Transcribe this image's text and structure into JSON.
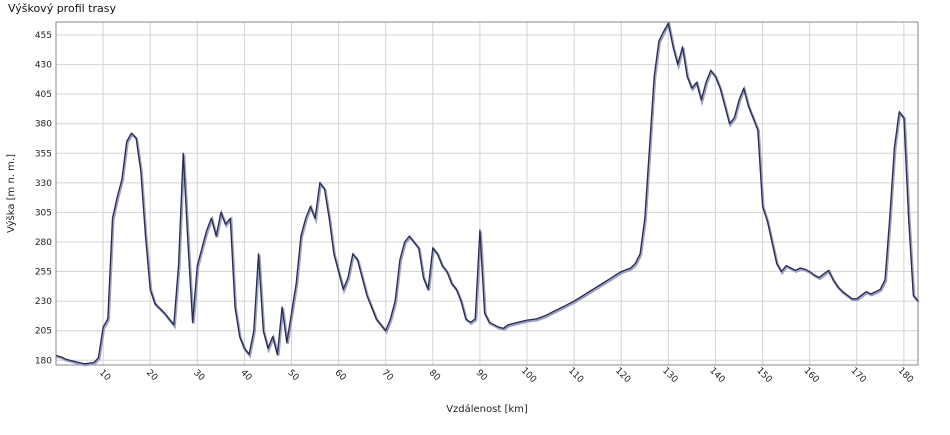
{
  "chart_data": {
    "type": "line",
    "title": "Výškový profil trasy",
    "xlabel": "Vzdálenost [km]",
    "ylabel": "Výška [m n. m.]",
    "xlim": [
      0,
      183
    ],
    "ylim": [
      176,
      466
    ],
    "x_ticks": [
      10,
      20,
      30,
      40,
      50,
      60,
      70,
      80,
      90,
      100,
      110,
      120,
      130,
      140,
      150,
      160,
      170,
      180
    ],
    "y_ticks": [
      180,
      205,
      230,
      255,
      280,
      305,
      330,
      355,
      380,
      405,
      430,
      455
    ],
    "grid": true,
    "colors": {
      "line": "#2b2b4a",
      "grid": "#d4d4d4",
      "axis": "#888888"
    },
    "series": [
      {
        "x": [
          0,
          1,
          2,
          4,
          6,
          8,
          9,
          10,
          11,
          12,
          13,
          14,
          15,
          16,
          17,
          18,
          19,
          20,
          21,
          23,
          25,
          26,
          27,
          28,
          29,
          30,
          31,
          32,
          33,
          34,
          35,
          36,
          37,
          38,
          39,
          40,
          41,
          42,
          43,
          44,
          45,
          46,
          47,
          48,
          49,
          50,
          51,
          52,
          53,
          54,
          55,
          56,
          57,
          58,
          59,
          60,
          61,
          62,
          63,
          64,
          65,
          66,
          67,
          68,
          69,
          70,
          71,
          72,
          73,
          74,
          75,
          76,
          77,
          78,
          79,
          80,
          81,
          82,
          83,
          84,
          85,
          86,
          87,
          88,
          89,
          90,
          91,
          92,
          93,
          94,
          95,
          96,
          98,
          100,
          102,
          104,
          106,
          108,
          110,
          112,
          114,
          116,
          118,
          120,
          122,
          123,
          124,
          125,
          126,
          127,
          128,
          129,
          130,
          131,
          132,
          133,
          134,
          135,
          136,
          137,
          138,
          139,
          140,
          141,
          142,
          143,
          144,
          145,
          146,
          147,
          148,
          149,
          150,
          151,
          152,
          153,
          154,
          155,
          156,
          157,
          158,
          159,
          160,
          161,
          162,
          163,
          164,
          165,
          166,
          167,
          168,
          169,
          170,
          171,
          172,
          173,
          174,
          175,
          176,
          177,
          178,
          179,
          180,
          181,
          182,
          183
        ],
        "y": [
          184,
          183,
          181,
          179,
          177,
          178,
          182,
          208,
          215,
          300,
          318,
          333,
          365,
          372,
          368,
          340,
          285,
          240,
          228,
          220,
          210,
          260,
          355,
          280,
          212,
          260,
          275,
          290,
          300,
          285,
          305,
          295,
          300,
          225,
          200,
          190,
          185,
          205,
          270,
          205,
          190,
          200,
          185,
          225,
          195,
          220,
          245,
          285,
          300,
          310,
          300,
          330,
          325,
          300,
          270,
          255,
          240,
          250,
          270,
          265,
          250,
          235,
          225,
          215,
          210,
          205,
          215,
          230,
          265,
          280,
          285,
          280,
          275,
          250,
          240,
          275,
          270,
          260,
          255,
          245,
          240,
          230,
          215,
          212,
          215,
          290,
          220,
          212,
          210,
          208,
          207,
          210,
          212,
          214,
          215,
          218,
          222,
          226,
          230,
          235,
          240,
          245,
          250,
          255,
          258,
          262,
          270,
          300,
          360,
          420,
          450,
          458,
          465,
          445,
          430,
          445,
          420,
          410,
          415,
          400,
          415,
          425,
          420,
          410,
          395,
          380,
          385,
          400,
          410,
          395,
          385,
          375,
          310,
          298,
          280,
          262,
          255,
          260,
          258,
          256,
          258,
          257,
          255,
          252,
          250,
          253,
          256,
          248,
          242,
          238,
          235,
          232,
          232,
          235,
          238,
          236,
          238,
          240,
          248,
          300,
          360,
          390,
          385,
          300,
          235,
          230
        ]
      }
    ]
  }
}
